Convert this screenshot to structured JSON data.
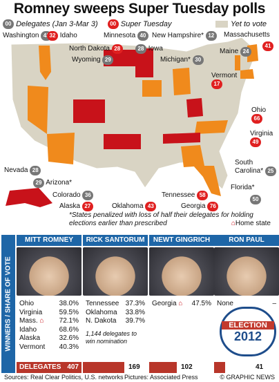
{
  "title": "Romney sweeps Super Tuesday polls",
  "legend": {
    "delegates_bubble": "00",
    "delegates_label": "Delegates (Jan 3-Mar 3)",
    "super_bubble": "00",
    "super_label": "Super Tuesday",
    "yet_label": "Yet to vote"
  },
  "states": [
    {
      "name": "Washington",
      "delegates": "43",
      "color": "grey"
    },
    {
      "name": "Idaho",
      "delegates": "32",
      "color": "red"
    },
    {
      "name": "Minnesota",
      "delegates": "40",
      "color": "grey"
    },
    {
      "name": "New Hampshire*",
      "delegates": "12",
      "color": "grey"
    },
    {
      "name": "Massachusetts",
      "delegates": "41",
      "color": "red"
    },
    {
      "name": "North Dakota",
      "delegates": "28",
      "color": "red"
    },
    {
      "name": "Iowa",
      "delegates": "28",
      "color": "grey"
    },
    {
      "name": "Maine",
      "delegates": "24",
      "color": "grey"
    },
    {
      "name": "Wyoming",
      "delegates": "29",
      "color": "grey"
    },
    {
      "name": "Michigan*",
      "delegates": "30",
      "color": "grey"
    },
    {
      "name": "Vermont",
      "delegates": "17",
      "color": "red"
    },
    {
      "name": "Ohio",
      "delegates": "66",
      "color": "red"
    },
    {
      "name": "Virginia",
      "delegates": "49",
      "color": "red"
    },
    {
      "name": "South Carolina*",
      "delegates": "25",
      "color": "grey"
    },
    {
      "name": "Nevada",
      "delegates": "28",
      "color": "grey"
    },
    {
      "name": "Arizona*",
      "delegates": "29",
      "color": "grey"
    },
    {
      "name": "Florida*",
      "delegates": "50",
      "color": "grey"
    },
    {
      "name": "Colorado",
      "delegates": "36",
      "color": "grey"
    },
    {
      "name": "Tennessee",
      "delegates": "58",
      "color": "red"
    },
    {
      "name": "Alaska",
      "delegates": "27",
      "color": "red"
    },
    {
      "name": "Oklahoma",
      "delegates": "43",
      "color": "red"
    },
    {
      "name": "Georgia",
      "delegates": "76",
      "color": "red"
    }
  ],
  "note": "*States penalized with loss of half their delegates for holding elections earlier than prescribed",
  "home_state": "Home state",
  "side_label": "WINNERS / SHARE OF VOTE",
  "candidates": [
    {
      "name": "MITT ROMNEY",
      "results": [
        {
          "state": "Ohio",
          "pct": "38.0%"
        },
        {
          "state": "Virginia",
          "pct": "59.5%"
        },
        {
          "state": "Mass.",
          "pct": "72.1%"
        },
        {
          "state": "Idaho",
          "pct": "68.6%"
        },
        {
          "state": "Alaska",
          "pct": "32.6%"
        },
        {
          "state": "Vermont",
          "pct": "40.3%"
        }
      ],
      "foot_label": "DELEGATES",
      "delegates": "407"
    },
    {
      "name": "RICK SANTORUM",
      "results": [
        {
          "state": "Tennessee",
          "pct": "37.3%"
        },
        {
          "state": "Oklahoma",
          "pct": "33.8%"
        },
        {
          "state": "N. Dakota",
          "pct": "39.7%"
        }
      ],
      "note": "1,144 delegates to win nomination",
      "delegates": "169"
    },
    {
      "name": "NEWT GINGRICH",
      "results": [
        {
          "state": "Georgia",
          "pct": "47.5%"
        }
      ],
      "delegates": "102"
    },
    {
      "name": "RON PAUL",
      "results": [
        {
          "state": "None",
          "pct": "–"
        }
      ],
      "delegates": "41"
    }
  ],
  "badge": {
    "line1": "ELECTION",
    "line2": "2012"
  },
  "sources": "Sources: Real Clear Politics, U.S. networks",
  "pictures": "Pictures: Associated Press",
  "credit": "© GRAPHIC NEWS",
  "colors": {
    "romney": "#f08a1c",
    "santorum": "#c8121a",
    "gingrich": "#e87a10",
    "not_voted": "#d9d4c4",
    "blue": "#1e66a7",
    "red_bar": "#b8362a"
  }
}
